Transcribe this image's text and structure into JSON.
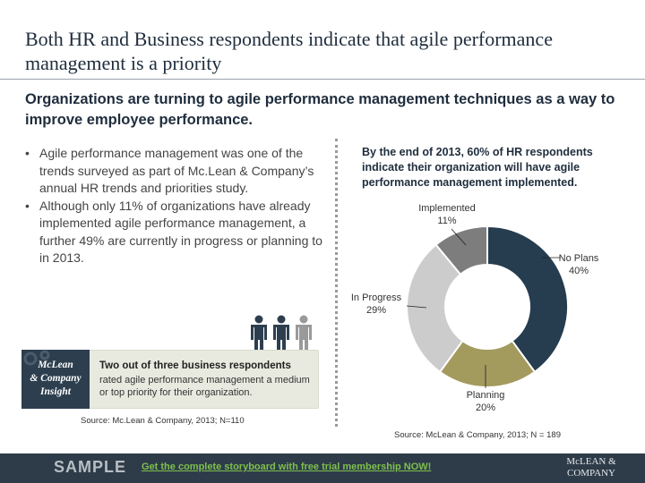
{
  "slide": {
    "title": "Both HR and Business respondents indicate that agile performance management is a priority",
    "subtitle": "Organizations are turning to agile performance management techniques as a way to improve employee performance."
  },
  "bullets": [
    "Agile performance management was one of the trends surveyed as part of Mc.Lean & Company’s annual HR trends and priorities study.",
    "Although only 11% of organizations have already implemented agile performance management, a further 49% are currently in progress or planning to in 2013."
  ],
  "insight": {
    "badge_line1": "McLean",
    "badge_line2": "& Company",
    "badge_line3": "Insight",
    "heading": "Two out of three business respondents",
    "body": "rated agile performance management a medium or top priority for their organization.",
    "source": "Source: Mc.Lean & Company, 2013; N=110",
    "people_icon": "people-icon",
    "colors": {
      "badge": "#2d3f4f",
      "box": "#e9eadf",
      "people_dark": "#2d3f4f",
      "people_light": "#9a9a9a"
    }
  },
  "chart_data": {
    "type": "pie",
    "title": "By the end of 2013, 60% of HR respondents indicate their organization will have agile performance management implemented.",
    "slices": [
      {
        "name": "No Plans",
        "value": 40,
        "label": "40%",
        "color": "#263c4f"
      },
      {
        "name": "Planning",
        "value": 20,
        "label": "20%",
        "color": "#a39a5e"
      },
      {
        "name": "In Progress",
        "value": 29,
        "label": "29%",
        "color": "#cccccc"
      },
      {
        "name": "Implemented",
        "value": 11,
        "label": "11%",
        "color": "#7d7d7d"
      }
    ],
    "source": "Source: McLean & Company, 2013; N = 189"
  },
  "footer": {
    "sample": "SAMPLE",
    "link": "Get the complete storyboard with free trial membership NOW!",
    "logo_line1": "McLEAN &",
    "logo_line2": "COMPANY"
  }
}
